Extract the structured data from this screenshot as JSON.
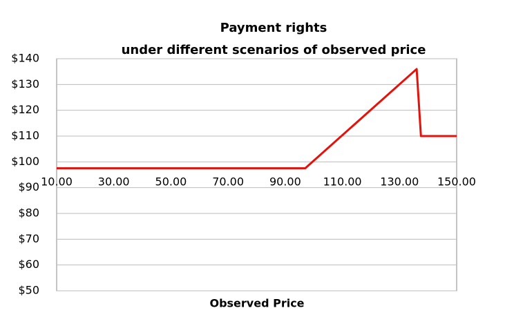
{
  "chart_data": {
    "type": "line",
    "title": "Payment rights",
    "subtitle": "under different scenarios of observed price",
    "x_label": "Observed Price",
    "x": [
      10,
      97,
      136,
      137.5,
      150
    ],
    "series": [
      {
        "name": "Payment rights",
        "color": "#e3120b",
        "values": [
          97.5,
          97.5,
          136,
          110,
          110
        ]
      }
    ],
    "xlim": [
      10,
      150
    ],
    "xticks": [
      {
        "value": 10,
        "label": "10.00"
      },
      {
        "value": 30,
        "label": "30.00"
      },
      {
        "value": 50,
        "label": "50.00"
      },
      {
        "value": 70,
        "label": "70.00"
      },
      {
        "value": 90,
        "label": "90.00"
      },
      {
        "value": 110,
        "label": "110.00"
      },
      {
        "value": 130,
        "label": "130.00"
      },
      {
        "value": 150,
        "label": "150.00"
      }
    ],
    "ylim": [
      50,
      140
    ],
    "yticks": [
      {
        "value": 50,
        "label": "$50"
      },
      {
        "value": 60,
        "label": "$60"
      },
      {
        "value": 70,
        "label": "$70"
      },
      {
        "value": 80,
        "label": "$80"
      },
      {
        "value": 90,
        "label": "$90"
      },
      {
        "value": 100,
        "label": "$100"
      },
      {
        "value": 110,
        "label": "$110"
      },
      {
        "value": 120,
        "label": "$120"
      },
      {
        "value": 130,
        "label": "$130"
      },
      {
        "value": 140,
        "label": "$140"
      }
    ],
    "grid": true
  }
}
